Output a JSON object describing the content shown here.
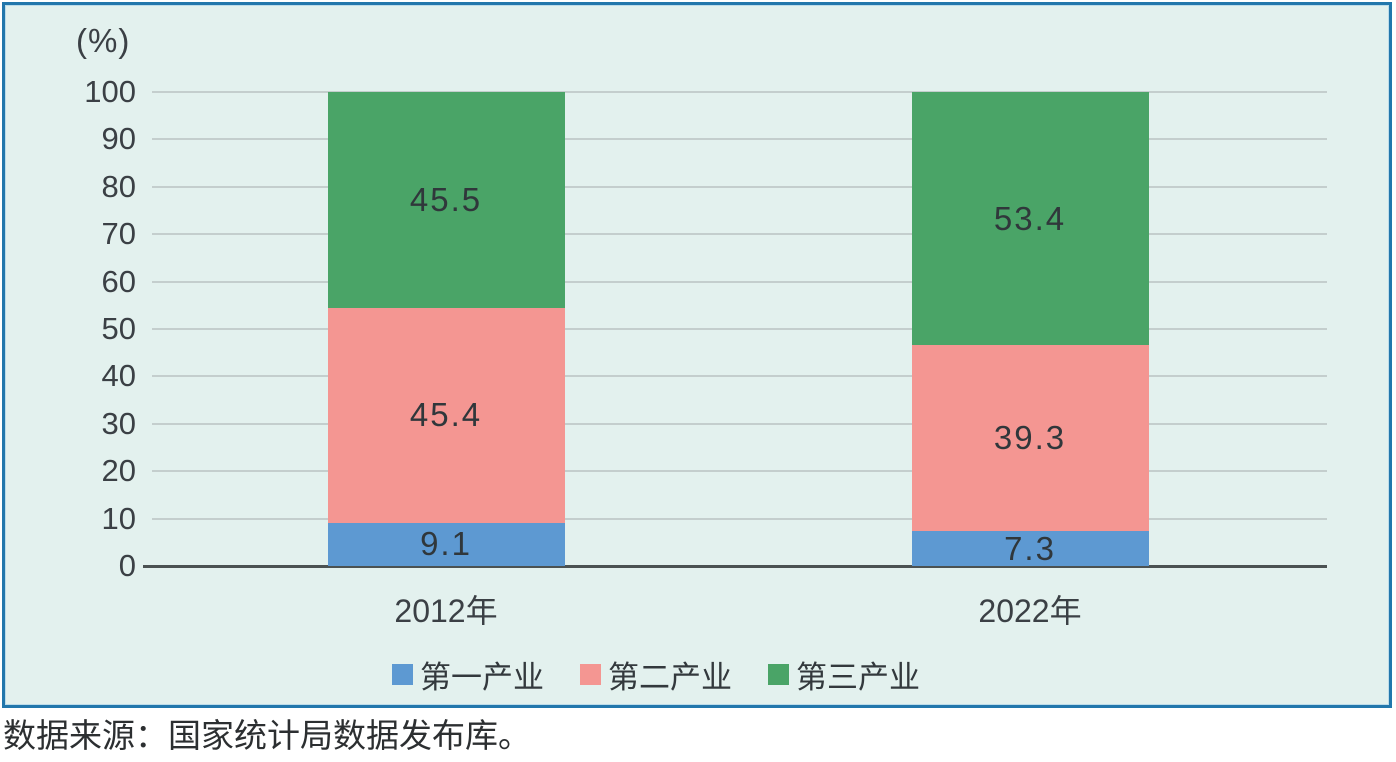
{
  "chart_data": {
    "type": "bar",
    "stacked": true,
    "unit_label": "(%)",
    "categories": [
      "2012年",
      "2022年"
    ],
    "series": [
      {
        "name": "第一产业",
        "color": "#5d99d2",
        "values": [
          9.1,
          7.3
        ]
      },
      {
        "name": "第二产业",
        "color": "#f49692",
        "values": [
          45.4,
          39.3
        ]
      },
      {
        "name": "第三产业",
        "color": "#4aa467",
        "values": [
          45.5,
          53.4
        ]
      }
    ],
    "ylim": [
      0,
      100
    ],
    "ytick_step": 10,
    "grid": true,
    "legend_position": "bottom"
  },
  "source_note": "数据来源：国家统计局数据发布库。",
  "colors": {
    "frame_border": "#2277ac",
    "chart_background": "#e3f1ee",
    "gridline": "#c4cecd",
    "axis_line": "#4b5252",
    "text": "#3b4045"
  }
}
